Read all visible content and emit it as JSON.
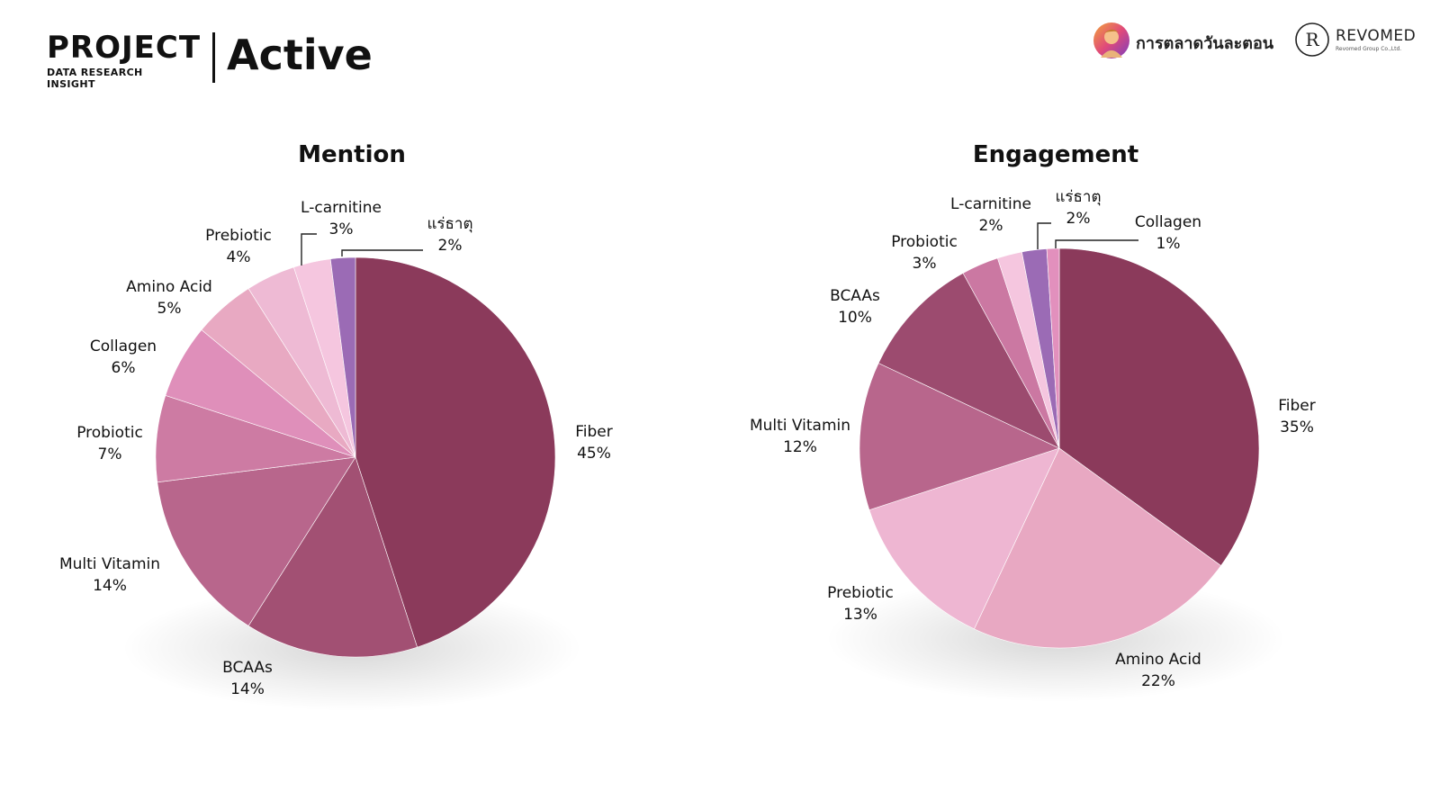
{
  "header": {
    "project_title": "PROJECT",
    "project_subtitle": "DATA RESEARCH INSIGHT",
    "page_title": "Active"
  },
  "brands": {
    "brand1_name": "การตลาดวันละตอน",
    "brand2_name": "REVOMED",
    "brand2_tagline": "Revomed Group Co.,Ltd."
  },
  "colors": {
    "fiber": "#8b3a5b",
    "bcaas_mention": "#a25073",
    "multi_vitamin": "#b8668c",
    "probiotic_mention": "#cd7ba3",
    "collagen_mention": "#df8fba",
    "amino_acid_mention": "#e8a9c2",
    "prebiotic_mention": "#eebad4",
    "l_carnitine": "#f5c6df",
    "minerals": "#9b6bb5",
    "amino_acid_engagement": "#e8a8c2",
    "prebiotic_engagement": "#eeb6d2",
    "bcaas_engagement": "#9c4b6f",
    "probiotic_engagement": "#cb78a2",
    "collagen_engagement": "#e290bd"
  },
  "chart_data": [
    {
      "type": "pie",
      "title": "Mention",
      "slices": [
        {
          "label": "Fiber",
          "value": 45,
          "value_label": "45%",
          "color": "#8b3a5b"
        },
        {
          "label": "BCAAs",
          "value": 14,
          "value_label": "14%",
          "color": "#a25073"
        },
        {
          "label": "Multi Vitamin",
          "value": 14,
          "value_label": "14%",
          "color": "#b8668c"
        },
        {
          "label": "Probiotic",
          "value": 7,
          "value_label": "7%",
          "color": "#cd7ba3"
        },
        {
          "label": "Collagen",
          "value": 6,
          "value_label": "6%",
          "color": "#df8fba"
        },
        {
          "label": "Amino Acid",
          "value": 5,
          "value_label": "5%",
          "color": "#e8a9c2"
        },
        {
          "label": "Prebiotic",
          "value": 4,
          "value_label": "4%",
          "color": "#eebad4"
        },
        {
          "label": "L-carnitine",
          "value": 3,
          "value_label": "3%",
          "color": "#f5c6df"
        },
        {
          "label": "แร่ธาตุ",
          "value": 2,
          "value_label": "2%",
          "color": "#9b6bb5"
        }
      ]
    },
    {
      "type": "pie",
      "title": "Engagement",
      "slices": [
        {
          "label": "Fiber",
          "value": 35,
          "value_label": "35%",
          "color": "#8b3a5b"
        },
        {
          "label": "Amino Acid",
          "value": 22,
          "value_label": "22%",
          "color": "#e8a8c2"
        },
        {
          "label": "Prebiotic",
          "value": 13,
          "value_label": "13%",
          "color": "#eeb6d2"
        },
        {
          "label": "Multi Vitamin",
          "value": 12,
          "value_label": "12%",
          "color": "#b8668c"
        },
        {
          "label": "BCAAs",
          "value": 10,
          "value_label": "10%",
          "color": "#9c4b6f"
        },
        {
          "label": "Probiotic",
          "value": 3,
          "value_label": "3%",
          "color": "#cb78a2"
        },
        {
          "label": "L-carnitine",
          "value": 2,
          "value_label": "2%",
          "color": "#f5c6df"
        },
        {
          "label": "แร่ธาตุ",
          "value": 2,
          "value_label": "2%",
          "color": "#9b6bb5"
        },
        {
          "label": "Collagen",
          "value": 1,
          "value_label": "1%",
          "color": "#e290bd"
        }
      ]
    }
  ]
}
